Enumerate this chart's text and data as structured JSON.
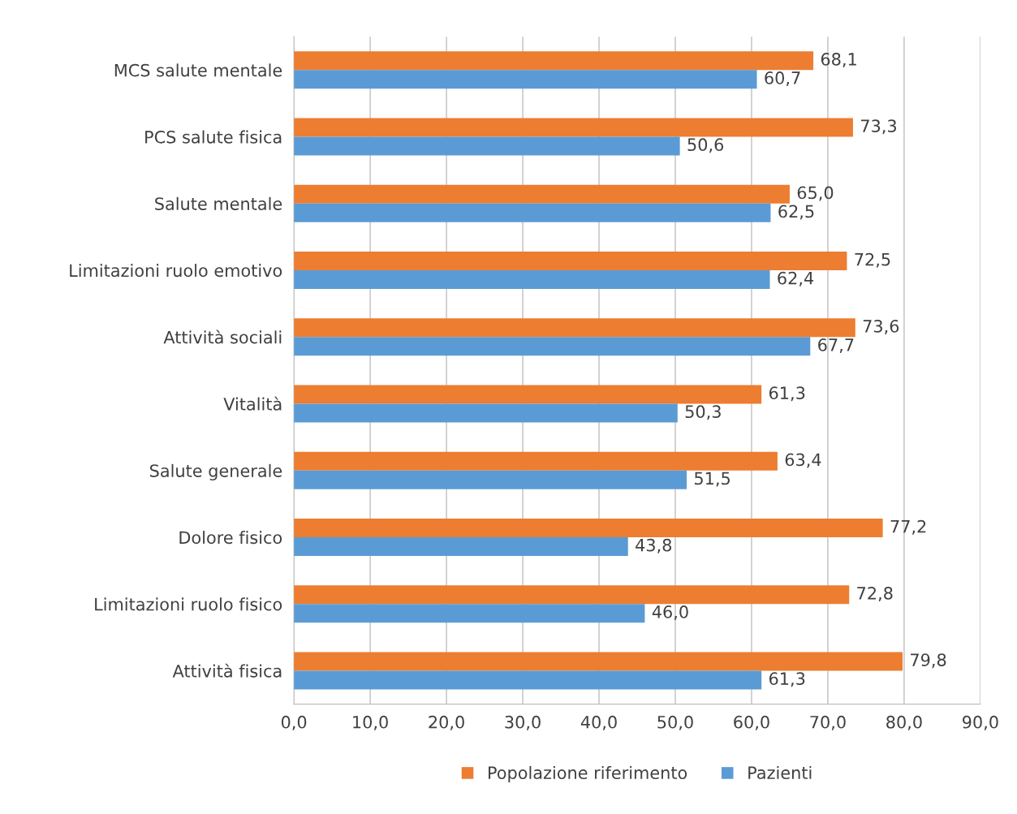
{
  "chart_data": {
    "type": "bar",
    "orientation": "horizontal",
    "categories": [
      "MCS salute mentale",
      "PCS salute fisica",
      "Salute mentale",
      "Limitazioni ruolo emotivo",
      "Attività sociali",
      "Vitalità",
      "Salute generale",
      "Dolore fisico",
      "Limitazioni ruolo fisico",
      "Attività fisica"
    ],
    "series": [
      {
        "name": "Popolazione riferimento",
        "color": "#ed7d31",
        "values": [
          68.1,
          73.3,
          65.0,
          72.5,
          73.6,
          61.3,
          63.4,
          77.2,
          72.8,
          79.8
        ],
        "value_labels": [
          "68,1",
          "73,3",
          "65,0",
          "72,5",
          "73,6",
          "61,3",
          "63,4",
          "77,2",
          "72,8",
          "79,8"
        ]
      },
      {
        "name": "Pazienti",
        "color": "#5b9bd5",
        "values": [
          60.7,
          50.6,
          62.5,
          62.4,
          67.7,
          50.3,
          51.5,
          43.8,
          46.0,
          61.3
        ],
        "value_labels": [
          "60,7",
          "50,6",
          "62,5",
          "62,4",
          "67,7",
          "50,3",
          "51,5",
          "43,8",
          "46,0",
          "61,3"
        ]
      }
    ],
    "xlim": [
      0,
      90
    ],
    "xticks": [
      {
        "value": 0,
        "label": "0,0"
      },
      {
        "value": 10,
        "label": "10,0"
      },
      {
        "value": 20,
        "label": "20,0"
      },
      {
        "value": 30,
        "label": "30,0"
      },
      {
        "value": 40,
        "label": "40,0"
      },
      {
        "value": 50,
        "label": "50,0"
      },
      {
        "value": 60,
        "label": "60,0"
      },
      {
        "value": 70,
        "label": "70,0"
      },
      {
        "value": 80,
        "label": "80,0"
      },
      {
        "value": 90,
        "label": "90,0"
      }
    ],
    "grid": "x",
    "legend": "bottom"
  }
}
